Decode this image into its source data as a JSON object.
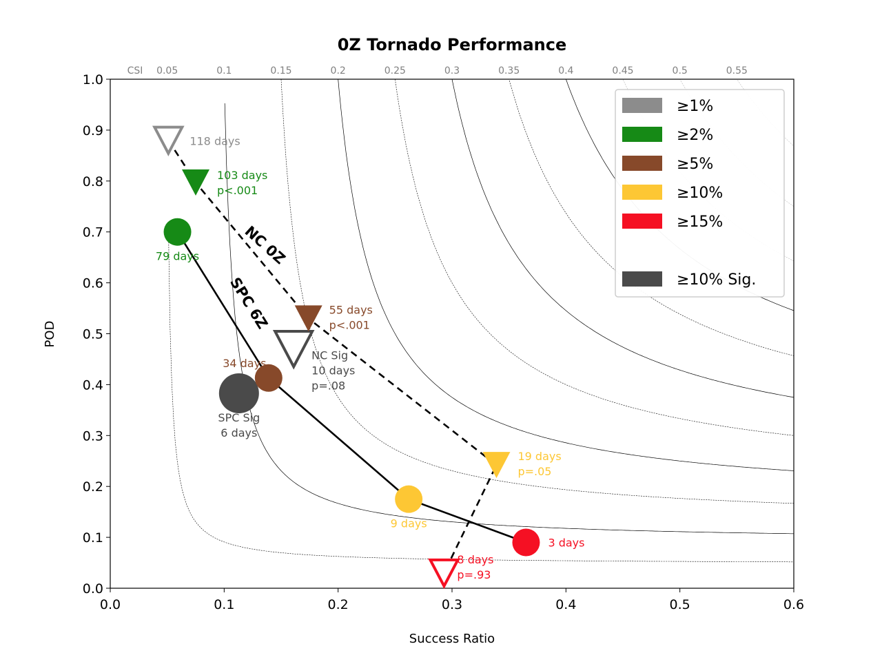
{
  "chart_data": {
    "type": "scatter",
    "title": "0Z Tornado Performance",
    "xlabel": "Success Ratio",
    "ylabel": "POD",
    "xlim": [
      0.0,
      0.6
    ],
    "ylim": [
      0.0,
      1.0
    ],
    "x_ticks": [
      "0.0",
      "0.1",
      "0.2",
      "0.3",
      "0.4",
      "0.5",
      "0.6"
    ],
    "y_ticks": [
      "0.0",
      "0.1",
      "0.2",
      "0.3",
      "0.4",
      "0.5",
      "0.6",
      "0.7",
      "0.8",
      "0.9",
      "1.0"
    ],
    "csi_label": "CSI",
    "csi_values": [
      0.05,
      0.1,
      0.15,
      0.2,
      0.25,
      0.3,
      0.35,
      0.4,
      0.45,
      0.5,
      0.55
    ],
    "csi_tick_labels": [
      "0.05",
      "0.1",
      "0.15",
      "0.2",
      "0.25",
      "0.3",
      "0.35",
      "0.4",
      "0.45",
      "0.5",
      "0.55"
    ],
    "legend": {
      "placement": "top-right",
      "items": [
        {
          "label": "≥1%",
          "color": "#8c8c8c"
        },
        {
          "label": "≥2%",
          "color": "#168a16"
        },
        {
          "label": "≥5%",
          "color": "#87492a"
        },
        {
          "label": "≥10%",
          "color": "#fdc734"
        },
        {
          "label": "≥15%",
          "color": "#f51023"
        },
        {
          "label": "",
          "color": ""
        },
        {
          "label": "≥10% Sig.",
          "color": "#4a4a4a"
        }
      ]
    },
    "series": [
      {
        "name": "SPC 6Z",
        "marker": "circle",
        "line": "solid",
        "points": [
          {
            "x": 0.059,
            "y": 0.7,
            "color": "#168a16",
            "label": [
              "79 days"
            ],
            "label_pos": "below"
          },
          {
            "x": 0.139,
            "y": 0.413,
            "color": "#87492a",
            "label": [
              "34 days"
            ],
            "label_pos": "upper-left"
          },
          {
            "x": 0.262,
            "y": 0.175,
            "color": "#fdc734",
            "label": [
              "9 days"
            ],
            "label_pos": "below"
          },
          {
            "x": 0.365,
            "y": 0.09,
            "color": "#f51023",
            "label": [
              "3 days"
            ],
            "label_pos": "right"
          }
        ],
        "sig_point": {
          "x": 0.113,
          "y": 0.383,
          "color": "#4a4a4a",
          "label": [
            "SPC Sig",
            "6 days"
          ]
        }
      },
      {
        "name": "NC 0Z",
        "marker": "triangle-down",
        "line": "dashed",
        "points": [
          {
            "x": 0.051,
            "y": 0.88,
            "color": "#8c8c8c",
            "filled": false,
            "label": [
              "118 days"
            ]
          },
          {
            "x": 0.075,
            "y": 0.797,
            "color": "#168a16",
            "filled": true,
            "label": [
              "103 days",
              "p<.001"
            ]
          },
          {
            "x": 0.174,
            "y": 0.53,
            "color": "#87492a",
            "filled": true,
            "label": [
              "55 days",
              "p<.001"
            ]
          },
          {
            "x": 0.339,
            "y": 0.242,
            "color": "#fdc734",
            "filled": true,
            "label": [
              "19 days",
              "p=.05"
            ]
          },
          {
            "x": 0.293,
            "y": 0.03,
            "color": "#f51023",
            "filled": false,
            "label": [
              "8 days",
              "p=.93"
            ]
          }
        ],
        "sig_point": {
          "x": 0.161,
          "y": 0.47,
          "color": "#4a4a4a",
          "filled": false,
          "label": [
            "NC Sig",
            "10 days",
            "p=.08"
          ]
        }
      }
    ]
  }
}
